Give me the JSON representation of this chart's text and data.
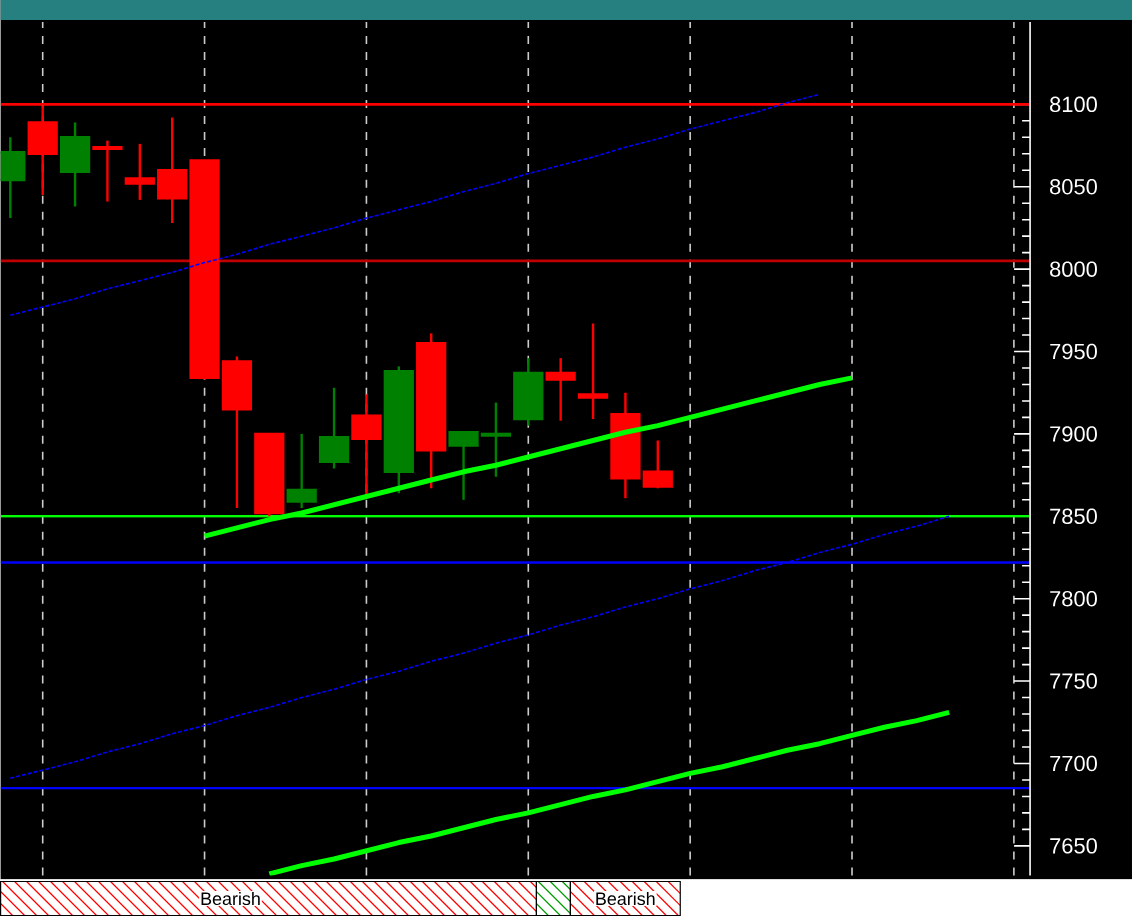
{
  "chart_data": {
    "type": "candlestick",
    "categories": [
      null,
      null,
      null,
      null,
      null,
      null,
      null,
      null,
      null,
      null,
      null,
      null,
      null,
      null,
      null,
      null,
      null,
      null,
      null,
      null,
      null,
      null,
      null,
      null,
      null,
      null,
      null,
      null,
      null,
      null,
      null,
      null
    ],
    "ohlc": [
      [
        8054,
        8080,
        8031,
        8071
      ],
      [
        8089,
        8099,
        8045,
        8070
      ],
      [
        8059,
        8089,
        8038,
        8080
      ],
      [
        8074,
        8078,
        8041,
        8073
      ],
      [
        8055,
        8076,
        8042,
        8052
      ],
      [
        8060,
        8092,
        8028,
        8043
      ],
      [
        8066,
        8066,
        7933,
        7934
      ],
      [
        7944,
        7947,
        7855,
        7915
      ],
      [
        7900,
        7900,
        7850,
        7852
      ],
      [
        7859,
        7900,
        7855,
        7866
      ],
      [
        7883,
        7928,
        7879,
        7898
      ],
      [
        7911,
        7924,
        7861,
        7897
      ],
      [
        7877,
        7941,
        7864,
        7938
      ],
      [
        7955,
        7961,
        7867,
        7890
      ],
      [
        7893,
        7901,
        7860,
        7901
      ],
      [
        7899,
        7919,
        7874,
        7900
      ],
      [
        7909,
        7946,
        7905,
        7937
      ],
      [
        7937,
        7946,
        7908,
        7933
      ],
      [
        7924,
        7967,
        7909,
        7922
      ],
      [
        7912,
        7925,
        7861,
        7873
      ],
      [
        7877,
        7896,
        7867,
        7868
      ],
      null,
      null,
      null,
      null,
      null,
      null,
      null,
      null,
      null,
      null,
      null
    ],
    "colors": [
      "#008000",
      "#ff0000",
      "#008000",
      "#ff0000",
      "#ff0000",
      "#ff0000",
      "#ff0000",
      "#ff0000",
      "#ff0000",
      "#008000",
      "#008000",
      "#ff0000",
      "#008000",
      "#ff0000",
      "#008000",
      "#008000",
      "#008000",
      "#ff0000",
      "#ff0000",
      "#ff0000",
      "#ff0000",
      null,
      null,
      null,
      null,
      null,
      null,
      null,
      null,
      null,
      null,
      null
    ],
    "series": [
      {
        "type": "line",
        "values": [
          7972,
          7977,
          7982,
          7988,
          7993,
          7998,
          8004,
          8009,
          8015,
          8020,
          8025,
          8031,
          8036,
          8041,
          8047,
          8052,
          8058,
          8063,
          8068,
          8074,
          8079,
          8085,
          8090,
          8095,
          8101,
          8106,
          null,
          null,
          null,
          null,
          null,
          null
        ],
        "color": "#0000ff",
        "line_style": "dashed"
      },
      {
        "type": "line",
        "values": [
          7691,
          7696,
          7701,
          7707,
          7712,
          7718,
          7723,
          7729,
          7734,
          7740,
          7745,
          7751,
          7756,
          7762,
          7767,
          7773,
          7778,
          7784,
          7789,
          7795,
          7800,
          7806,
          7811,
          7817,
          7822,
          7828,
          7833,
          7839,
          7844,
          7850,
          null,
          null
        ],
        "color": "#0000ff",
        "line_style": "dashed"
      },
      {
        "type": "line",
        "values": [
          null,
          null,
          null,
          null,
          null,
          null,
          7838,
          7843,
          7848,
          7852,
          7857,
          7862,
          7867,
          7872,
          7877,
          7881,
          7886,
          7891,
          7896,
          7901,
          7905,
          7910,
          7915,
          7920,
          7925,
          7930,
          7934,
          null,
          null,
          null,
          null,
          null
        ],
        "color": "#00ff00",
        "line_style": "solid"
      },
      {
        "type": "line",
        "values": [
          null,
          null,
          null,
          null,
          null,
          null,
          null,
          null,
          7633,
          7638,
          7642,
          7647,
          7652,
          7656,
          7661,
          7666,
          7670,
          7675,
          7680,
          7684,
          7689,
          7694,
          7698,
          7703,
          7708,
          7712,
          7717,
          7722,
          7726,
          7731,
          null,
          null
        ],
        "color": "#00ff00",
        "line_style": "solid"
      }
    ],
    "ref_lines": [
      {
        "axis": "y",
        "value": 8100,
        "color": "#ff0000"
      },
      {
        "axis": "y",
        "value": 8005,
        "color": "#c00000"
      },
      {
        "axis": "y",
        "value": 7850,
        "color": "#00ff00"
      },
      {
        "axis": "y",
        "value": 7822,
        "color": "#0000ff"
      },
      {
        "axis": "y",
        "value": 7685,
        "color": "#0000ff"
      }
    ],
    "ylim": [
      7632,
      8150
    ],
    "yticks": [
      7650,
      7700,
      7750,
      7800,
      7850,
      7900,
      7950,
      8000,
      8050,
      8100
    ],
    "grid": "x",
    "tick_labels": "y",
    "marker": "none",
    "annotations": [
      "Bearish",
      "Bearish"
    ]
  }
}
